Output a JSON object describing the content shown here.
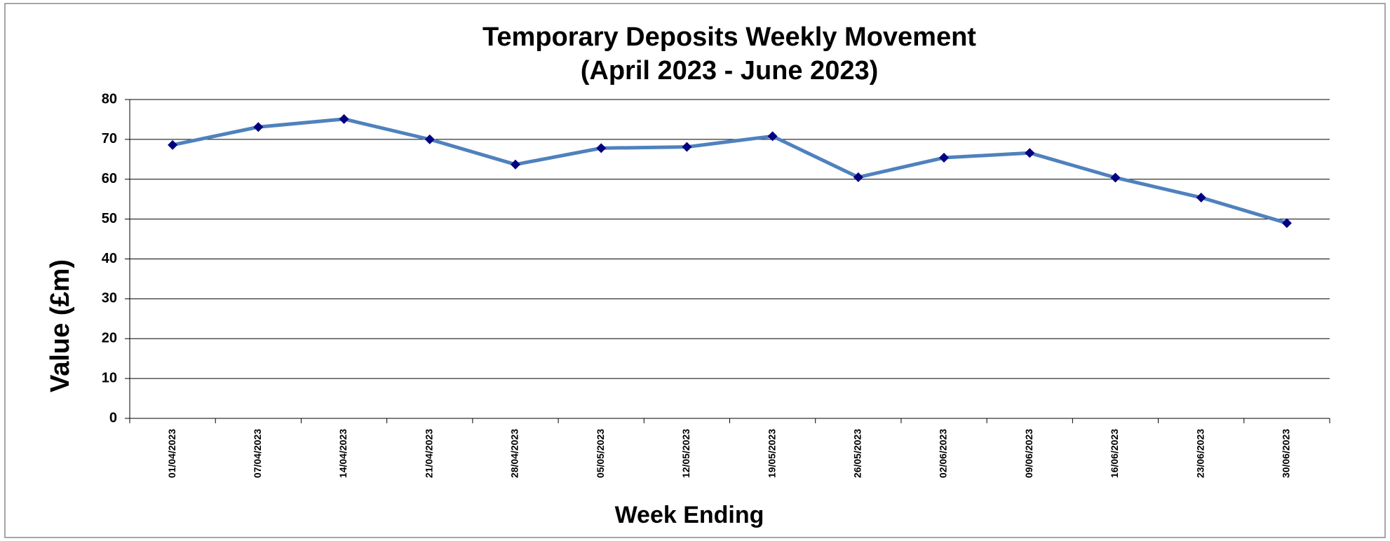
{
  "chart_data": {
    "type": "line",
    "title": "Temporary Deposits Weekly Movement",
    "subtitle": "(April 2023 - June 2023)",
    "x_label": "Week Ending",
    "y_label": "Value (£m)",
    "categories": [
      "01/04/2023",
      "07/04/2023",
      "14/04/2023",
      "21/04/2023",
      "28/04/2023",
      "05/05/2023",
      "12/05/2023",
      "19/05/2023",
      "26/05/2023",
      "02/06/2023",
      "09/06/2023",
      "16/06/2023",
      "23/06/2023",
      "30/06/2023"
    ],
    "values": [
      68.6,
      73.1,
      75.1,
      70.0,
      63.7,
      67.8,
      68.1,
      70.8,
      60.5,
      65.4,
      66.6,
      60.4,
      55.4,
      49.0
    ],
    "color": "#4f81bd",
    "marker_color": "#000080",
    "ylim": [
      0,
      80
    ],
    "yticks": [
      0,
      10,
      20,
      30,
      40,
      50,
      60,
      70,
      80
    ],
    "grid": true
  }
}
